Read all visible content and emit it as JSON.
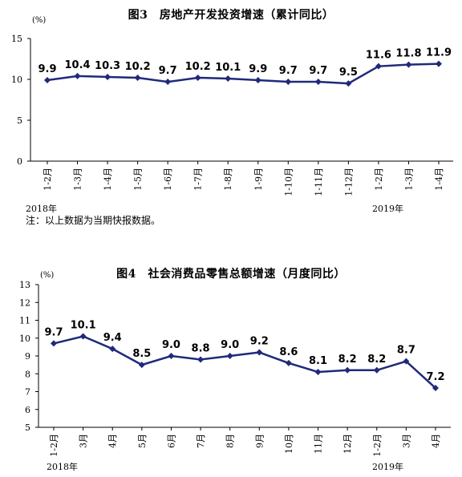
{
  "chart_data": [
    {
      "type": "line",
      "title": "图3　房地产开发投资增速（累计同比）",
      "unit_label": "(%)",
      "categories": [
        "1-2月",
        "1-3月",
        "1-4月",
        "1-5月",
        "1-6月",
        "1-7月",
        "1-8月",
        "1-9月",
        "1-10月",
        "1-11月",
        "1-12月",
        "1-2月",
        "1-3月",
        "1-4月"
      ],
      "values": [
        9.9,
        10.4,
        10.3,
        10.2,
        9.7,
        10.2,
        10.1,
        9.9,
        9.7,
        9.7,
        9.5,
        11.6,
        11.8,
        11.9
      ],
      "value_labels": [
        "9.9",
        "10.4",
        "10.3",
        "10.2",
        "9.7",
        "10.2",
        "10.1",
        "9.9",
        "9.7",
        "9.7",
        "9.5",
        "11.6",
        "11.8",
        "11.9"
      ],
      "ylim": [
        0,
        15
      ],
      "yticks": [
        "0",
        "5",
        "10",
        "15"
      ],
      "year_labels": [
        "2018年",
        "2019年"
      ],
      "note": "注：以上数据为当期快报数据。",
      "color": "#1f2a7a"
    },
    {
      "type": "line",
      "title": "图4　社会消费品零售总额增速（月度同比）",
      "unit_label": "(%)",
      "categories": [
        "1-2月",
        "3月",
        "4月",
        "5月",
        "6月",
        "7月",
        "8月",
        "9月",
        "10月",
        "11月",
        "12月",
        "1-2月",
        "3月",
        "4月"
      ],
      "values": [
        9.7,
        10.1,
        9.4,
        8.5,
        9.0,
        8.8,
        9.0,
        9.2,
        8.6,
        8.1,
        8.2,
        8.2,
        8.7,
        7.2
      ],
      "value_labels": [
        "9.7",
        "10.1",
        "9.4",
        "8.5",
        "9.0",
        "8.8",
        "9.0",
        "9.2",
        "8.6",
        "8.1",
        "8.2",
        "8.2",
        "8.7",
        "7.2"
      ],
      "ylim": [
        5,
        13
      ],
      "yticks": [
        "5",
        "6",
        "7",
        "8",
        "9",
        "10",
        "11",
        "12",
        "13"
      ],
      "year_labels": [
        "2018年",
        "2019年"
      ],
      "color": "#1f2a7a"
    }
  ]
}
